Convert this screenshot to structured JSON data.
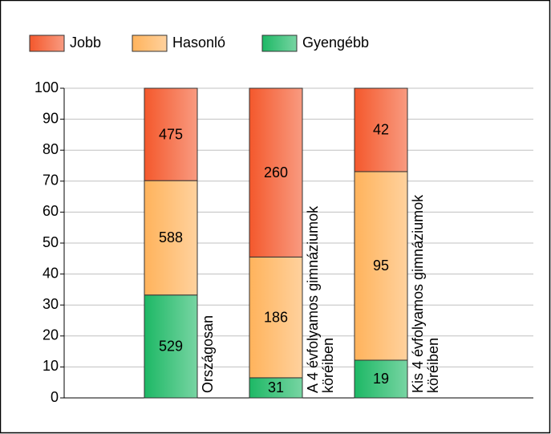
{
  "chart_data": {
    "type": "bar",
    "stacking": "percent",
    "categories": [
      "Országosan",
      "A 4 évfolyamos gimnáziumok köréiben",
      "Kis 4 évfolyamos gimnáziumok köréiben"
    ],
    "series": [
      {
        "name": "Gyengébb",
        "color": "#1db865",
        "values": [
          529,
          31,
          19
        ]
      },
      {
        "name": "Hasonló",
        "color": "#ffb35c",
        "values": [
          588,
          186,
          95
        ]
      },
      {
        "name": "Jobb",
        "color": "#f4582c",
        "values": [
          475,
          260,
          42
        ]
      }
    ],
    "legend_order": [
      "Jobb",
      "Hasonló",
      "Gyengébb"
    ],
    "ylim": [
      0,
      100
    ],
    "yticks": [
      0,
      10,
      20,
      30,
      40,
      50,
      60,
      70,
      80,
      90,
      100
    ],
    "grid": true,
    "legend": "top"
  }
}
